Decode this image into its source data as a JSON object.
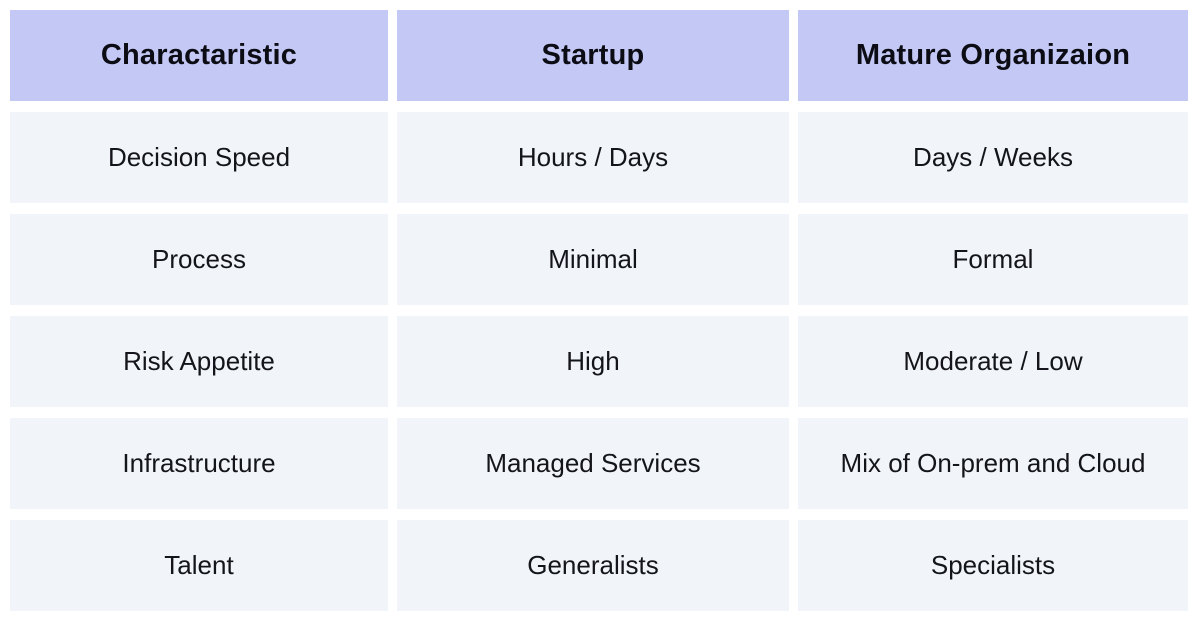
{
  "colors": {
    "header_bg": "#c4c8f4",
    "cell_bg": "#f1f4f8",
    "header_text": "#0c0d14",
    "cell_text": "#14151c",
    "page_bg": "#ffffff"
  },
  "chart_data": {
    "type": "table",
    "columns": [
      "Charactaristic",
      "Startup",
      "Mature Organizaion"
    ],
    "rows": [
      [
        "Decision Speed",
        "Hours / Days",
        "Days / Weeks"
      ],
      [
        "Process",
        "Minimal",
        "Formal"
      ],
      [
        "Risk Appetite",
        "High",
        "Moderate / Low"
      ],
      [
        "Infrastructure",
        "Managed Services",
        "Mix of On-prem and Cloud"
      ],
      [
        "Talent",
        "Generalists",
        "Specialists"
      ]
    ],
    "layout": {
      "header_position": "top-row",
      "grid": "3-columns-with-white-gutters",
      "legend": "none"
    }
  }
}
